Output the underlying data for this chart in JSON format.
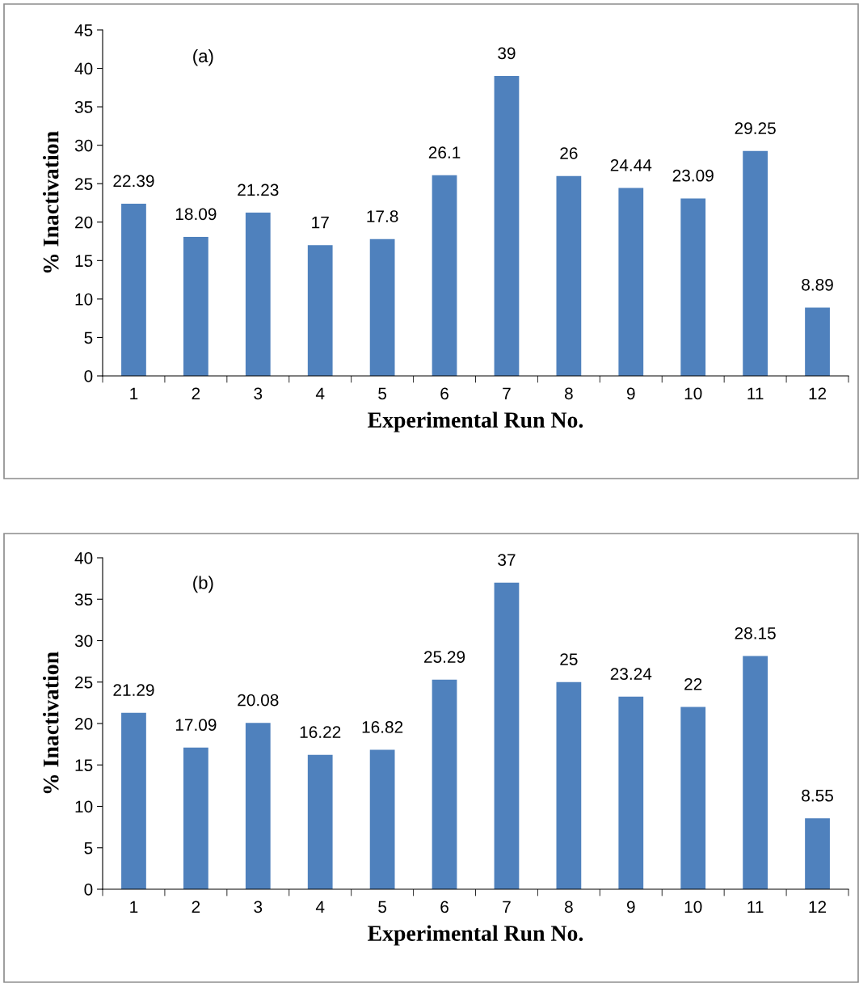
{
  "chart_data": [
    {
      "type": "bar",
      "annotations": [
        "(a)"
      ],
      "xlabel": "Experimental Run No.",
      "ylabel": "% Inactivation",
      "categories": [
        "1",
        "2",
        "3",
        "4",
        "5",
        "6",
        "7",
        "8",
        "9",
        "10",
        "11",
        "12"
      ],
      "values": [
        22.39,
        18.09,
        21.23,
        17,
        17.8,
        26.1,
        39,
        26,
        24.44,
        23.09,
        29.25,
        8.89
      ],
      "color": "#4f81bd",
      "ylim": [
        0,
        45
      ],
      "yticks": [
        0,
        5,
        10,
        15,
        20,
        25,
        30,
        35,
        40,
        45
      ],
      "data_labels": true,
      "grid": false,
      "legend": false
    },
    {
      "type": "bar",
      "annotations": [
        "(b)"
      ],
      "xlabel": "Experimental Run No.",
      "ylabel": "% Inactivation",
      "categories": [
        "1",
        "2",
        "3",
        "4",
        "5",
        "6",
        "7",
        "8",
        "9",
        "10",
        "11",
        "12"
      ],
      "values": [
        21.29,
        17.09,
        20.08,
        16.22,
        16.82,
        25.29,
        37,
        25,
        23.24,
        22,
        28.15,
        8.55
      ],
      "color": "#4f81bd",
      "ylim": [
        0,
        40
      ],
      "yticks": [
        0,
        5,
        10,
        15,
        20,
        25,
        30,
        35,
        40
      ],
      "data_labels": true,
      "grid": false,
      "legend": false
    }
  ]
}
